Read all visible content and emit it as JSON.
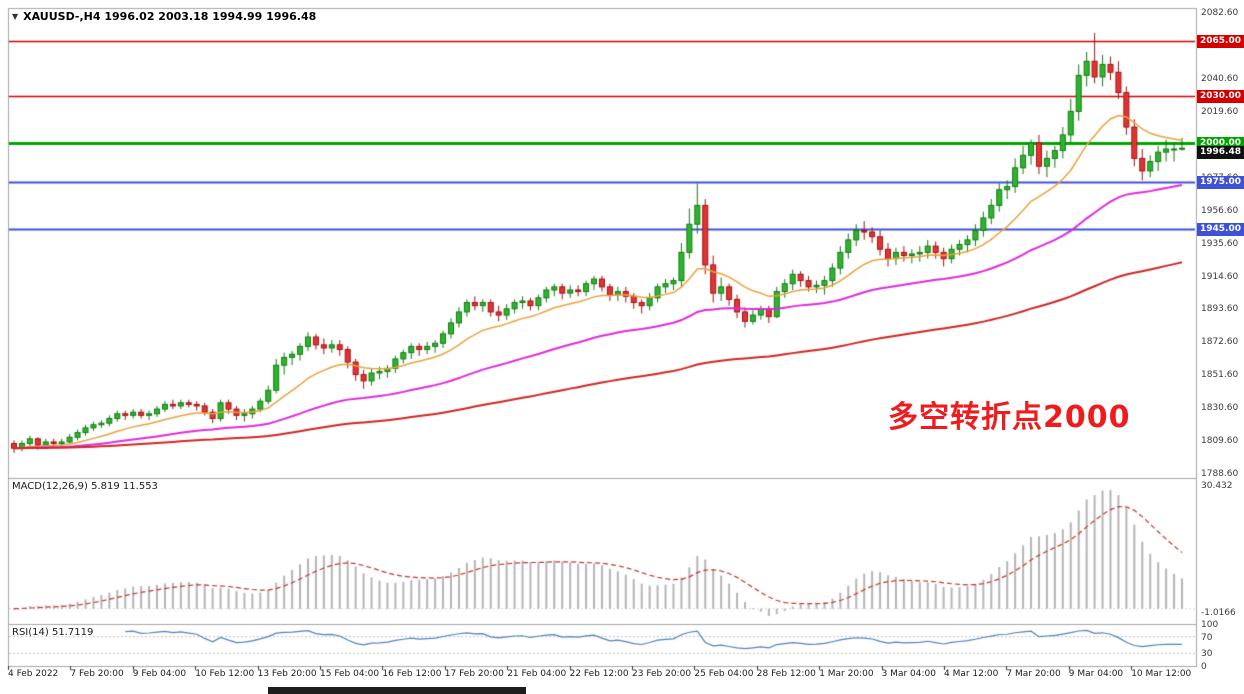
{
  "chart_data": {
    "type": "candlestick",
    "symbol": "XAUUSD-",
    "timeframe": "H4",
    "header_marker": "▼",
    "header_text": "XAUUSD-,H4 1996.02 2003.18 1994.99 1996.48",
    "ohlc_display": {
      "open": "1996.02",
      "high": "2003.18",
      "low": "1994.99",
      "close": "1996.48"
    },
    "ylim": [
      1786,
      2086
    ],
    "annotation": {
      "text": "多空转折点2000",
      "color": "#ee1c1c"
    },
    "colors": {
      "up_fill": "#2db52d",
      "up_border": "#157a15",
      "down_fill": "#e23434",
      "down_border": "#a31111",
      "panel_border": "#a6a6a6"
    },
    "price_axis_labels": [
      "2082.60",
      "2061.60",
      "2040.60",
      "2019.60",
      "1998.60",
      "1977.60",
      "1956.60",
      "1935.60",
      "1914.60",
      "1893.60",
      "1872.60",
      "1851.60",
      "1830.60",
      "1809.60",
      "1788.60"
    ],
    "time_labels": [
      "4 Feb 2022",
      "7 Feb 20:00",
      "9 Feb 04:00",
      "10 Feb 12:00",
      "13 Feb 20:00",
      "15 Feb 04:00",
      "16 Feb 12:00",
      "17 Feb 20:00",
      "21 Feb 04:00",
      "22 Feb 12:00",
      "23 Feb 20:00",
      "25 Feb 04:00",
      "28 Feb 12:00",
      "1 Mar 20:00",
      "3 Mar 04:00",
      "4 Mar 12:00",
      "7 Mar 20:00",
      "9 Mar 04:00",
      "10 Mar 12:00"
    ],
    "levels": [
      {
        "price": 2065.0,
        "label": "2065.00",
        "color": "#d40000",
        "width": 1.5
      },
      {
        "price": 2030.0,
        "label": "2030.00",
        "color": "#d40000",
        "width": 1.5
      },
      {
        "price": 2000.0,
        "label": "2000.00",
        "color": "#00a400",
        "width": 3
      },
      {
        "price": 1975.0,
        "label": "1975.00",
        "color": "#3f51d6",
        "width": 2
      },
      {
        "price": 1945.0,
        "label": "1945.00",
        "color": "#3f51d6",
        "width": 2
      }
    ],
    "current_price": {
      "value": 1996.48,
      "label": "1996.48",
      "bg": "#101010"
    },
    "moving_averages": [
      {
        "name": "ma-fast",
        "period": 14,
        "color": "#eaa23c",
        "width": 1.5
      },
      {
        "name": "ma-mid",
        "period": 50,
        "color": "#dd2bdd",
        "width": 2
      },
      {
        "name": "ma-slow",
        "period": 130,
        "color": "#cf2626",
        "width": 2
      }
    ],
    "indicators": {
      "macd": {
        "label": "MACD(12,26,9) 5.819 11.553",
        "fast": 12,
        "slow": 26,
        "signal": 9,
        "main_value": "5.819",
        "signal_value": "11.553",
        "axis_max": "30.432",
        "axis_min": "-1.0166",
        "histogram_color": "#b5b5b5",
        "signal_color": "#c0392b"
      },
      "rsi": {
        "label": "RSI(14) 51.7119",
        "period": 14,
        "value": "51.7119",
        "axis_labels": [
          "100",
          "70",
          "30",
          "0"
        ],
        "level_high": 70,
        "level_low": 30,
        "line_color": "#4f81bd"
      }
    },
    "candles": [
      [
        1808,
        1810,
        1802,
        1805
      ],
      [
        1805,
        1810,
        1803,
        1808
      ],
      [
        1808,
        1813,
        1806,
        1811
      ],
      [
        1811,
        1812,
        1804,
        1807
      ],
      [
        1807,
        1811,
        1805,
        1809
      ],
      [
        1809,
        1811,
        1806,
        1808
      ],
      [
        1808,
        1811,
        1806,
        1809
      ],
      [
        1809,
        1814,
        1808,
        1812
      ],
      [
        1812,
        1817,
        1810,
        1815
      ],
      [
        1815,
        1820,
        1813,
        1818
      ],
      [
        1818,
        1822,
        1816,
        1820
      ],
      [
        1820,
        1823,
        1818,
        1821
      ],
      [
        1821,
        1826,
        1819,
        1824
      ],
      [
        1824,
        1829,
        1822,
        1827
      ],
      [
        1827,
        1829,
        1823,
        1826
      ],
      [
        1826,
        1830,
        1824,
        1828
      ],
      [
        1828,
        1830,
        1824,
        1826
      ],
      [
        1826,
        1829,
        1823,
        1827
      ],
      [
        1827,
        1832,
        1825,
        1830
      ],
      [
        1830,
        1835,
        1828,
        1833
      ],
      [
        1833,
        1836,
        1830,
        1832
      ],
      [
        1832,
        1836,
        1830,
        1834
      ],
      [
        1834,
        1836,
        1831,
        1833
      ],
      [
        1833,
        1835,
        1829,
        1832
      ],
      [
        1832,
        1834,
        1826,
        1828
      ],
      [
        1828,
        1830,
        1821,
        1824
      ],
      [
        1824,
        1836,
        1822,
        1834
      ],
      [
        1834,
        1836,
        1827,
        1830
      ],
      [
        1830,
        1832,
        1823,
        1826
      ],
      [
        1826,
        1830,
        1822,
        1827
      ],
      [
        1827,
        1832,
        1824,
        1830
      ],
      [
        1830,
        1837,
        1828,
        1835
      ],
      [
        1835,
        1845,
        1833,
        1842
      ],
      [
        1842,
        1862,
        1840,
        1858
      ],
      [
        1858,
        1866,
        1852,
        1863
      ],
      [
        1863,
        1867,
        1858,
        1865
      ],
      [
        1865,
        1872,
        1861,
        1870
      ],
      [
        1870,
        1879,
        1867,
        1876
      ],
      [
        1876,
        1878,
        1868,
        1871
      ],
      [
        1871,
        1875,
        1865,
        1869
      ],
      [
        1869,
        1874,
        1866,
        1871
      ],
      [
        1871,
        1874,
        1864,
        1868
      ],
      [
        1868,
        1870,
        1856,
        1860
      ],
      [
        1860,
        1862,
        1848,
        1852
      ],
      [
        1852,
        1855,
        1843,
        1848
      ],
      [
        1848,
        1856,
        1845,
        1853
      ],
      [
        1853,
        1857,
        1849,
        1854
      ],
      [
        1854,
        1858,
        1850,
        1856
      ],
      [
        1856,
        1864,
        1853,
        1862
      ],
      [
        1862,
        1868,
        1859,
        1866
      ],
      [
        1866,
        1872,
        1862,
        1870
      ],
      [
        1870,
        1872,
        1864,
        1868
      ],
      [
        1868,
        1873,
        1865,
        1870
      ],
      [
        1870,
        1874,
        1866,
        1872
      ],
      [
        1872,
        1880,
        1869,
        1878
      ],
      [
        1878,
        1888,
        1875,
        1885
      ],
      [
        1885,
        1895,
        1882,
        1892
      ],
      [
        1892,
        1900,
        1889,
        1898
      ],
      [
        1898,
        1902,
        1893,
        1896
      ],
      [
        1896,
        1900,
        1892,
        1898
      ],
      [
        1898,
        1900,
        1889,
        1892
      ],
      [
        1892,
        1896,
        1886,
        1890
      ],
      [
        1890,
        1897,
        1887,
        1894
      ],
      [
        1894,
        1900,
        1891,
        1898
      ],
      [
        1898,
        1902,
        1894,
        1899
      ],
      [
        1899,
        1901,
        1893,
        1896
      ],
      [
        1896,
        1903,
        1893,
        1901
      ],
      [
        1901,
        1908,
        1898,
        1906
      ],
      [
        1906,
        1910,
        1902,
        1908
      ],
      [
        1908,
        1910,
        1900,
        1904
      ],
      [
        1904,
        1909,
        1901,
        1906
      ],
      [
        1906,
        1909,
        1902,
        1905
      ],
      [
        1905,
        1912,
        1902,
        1910
      ],
      [
        1910,
        1915,
        1906,
        1913
      ],
      [
        1913,
        1915,
        1905,
        1908
      ],
      [
        1908,
        1910,
        1899,
        1903
      ],
      [
        1903,
        1908,
        1899,
        1905
      ],
      [
        1905,
        1908,
        1898,
        1902
      ],
      [
        1902,
        1904,
        1894,
        1898
      ],
      [
        1898,
        1900,
        1891,
        1896
      ],
      [
        1896,
        1904,
        1893,
        1901
      ],
      [
        1901,
        1910,
        1898,
        1908
      ],
      [
        1908,
        1913,
        1904,
        1910
      ],
      [
        1910,
        1914,
        1906,
        1912
      ],
      [
        1912,
        1936,
        1908,
        1930
      ],
      [
        1930,
        1958,
        1926,
        1948
      ],
      [
        1948,
        1974,
        1942,
        1960
      ],
      [
        1960,
        1964,
        1916,
        1922
      ],
      [
        1922,
        1928,
        1898,
        1904
      ],
      [
        1904,
        1914,
        1899,
        1908
      ],
      [
        1908,
        1910,
        1896,
        1900
      ],
      [
        1900,
        1903,
        1888,
        1892
      ],
      [
        1892,
        1895,
        1882,
        1886
      ],
      [
        1886,
        1893,
        1884,
        1890
      ],
      [
        1890,
        1896,
        1887,
        1894
      ],
      [
        1894,
        1896,
        1885,
        1889
      ],
      [
        1889,
        1908,
        1888,
        1905
      ],
      [
        1905,
        1913,
        1901,
        1910
      ],
      [
        1910,
        1919,
        1906,
        1916
      ],
      [
        1916,
        1918,
        1908,
        1912
      ],
      [
        1912,
        1915,
        1905,
        1908
      ],
      [
        1908,
        1912,
        1904,
        1909
      ],
      [
        1909,
        1915,
        1903,
        1912
      ],
      [
        1912,
        1923,
        1908,
        1920
      ],
      [
        1920,
        1934,
        1916,
        1930
      ],
      [
        1930,
        1942,
        1926,
        1938
      ],
      [
        1938,
        1948,
        1934,
        1944
      ],
      [
        1944,
        1950,
        1938,
        1943
      ],
      [
        1943,
        1946,
        1936,
        1940
      ],
      [
        1940,
        1944,
        1928,
        1932
      ],
      [
        1932,
        1936,
        1921,
        1926
      ],
      [
        1926,
        1933,
        1922,
        1930
      ],
      [
        1930,
        1934,
        1924,
        1928
      ],
      [
        1928,
        1932,
        1923,
        1929
      ],
      [
        1929,
        1934,
        1924,
        1930
      ],
      [
        1930,
        1938,
        1926,
        1934
      ],
      [
        1934,
        1937,
        1926,
        1930
      ],
      [
        1930,
        1933,
        1921,
        1926
      ],
      [
        1926,
        1935,
        1923,
        1932
      ],
      [
        1932,
        1938,
        1928,
        1935
      ],
      [
        1935,
        1941,
        1930,
        1938
      ],
      [
        1938,
        1948,
        1934,
        1944
      ],
      [
        1944,
        1956,
        1940,
        1952
      ],
      [
        1952,
        1964,
        1948,
        1960
      ],
      [
        1960,
        1974,
        1956,
        1970
      ],
      [
        1970,
        1976,
        1964,
        1972
      ],
      [
        1972,
        1990,
        1968,
        1984
      ],
      [
        1984,
        1998,
        1980,
        1992
      ],
      [
        1992,
        2002,
        1986,
        2000
      ],
      [
        2000,
        2005,
        1980,
        1985
      ],
      [
        1985,
        1995,
        1978,
        1990
      ],
      [
        1990,
        1998,
        1984,
        1995
      ],
      [
        1995,
        2010,
        1990,
        2005
      ],
      [
        2005,
        2028,
        2000,
        2020
      ],
      [
        2020,
        2050,
        2014,
        2043
      ],
      [
        2043,
        2058,
        2036,
        2052
      ],
      [
        2052,
        2070,
        2038,
        2042
      ],
      [
        2042,
        2056,
        2036,
        2050
      ],
      [
        2050,
        2055,
        2040,
        2045
      ],
      [
        2045,
        2052,
        2028,
        2032
      ],
      [
        2032,
        2036,
        2005,
        2010
      ],
      [
        2010,
        2015,
        1985,
        1990
      ],
      [
        1990,
        1996,
        1976,
        1982
      ],
      [
        1982,
        1992,
        1978,
        1988
      ],
      [
        1988,
        1998,
        1982,
        1994
      ],
      [
        1994,
        2002,
        1988,
        1996
      ],
      [
        1996,
        2000,
        1988,
        1996
      ],
      [
        1996.02,
        2003.18,
        1994.99,
        1996.48
      ]
    ]
  }
}
